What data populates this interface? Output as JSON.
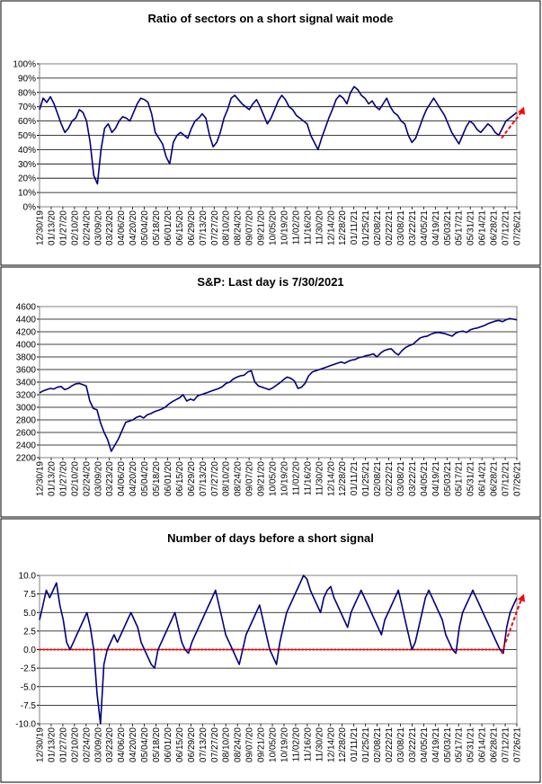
{
  "chart_data": [
    {
      "type": "line",
      "title": "Ratio of sectors on a short signal wait mode",
      "xlabel": "",
      "ylabel": "",
      "ylim": [
        0,
        100
      ],
      "ytick_labels": [
        "0%",
        "10%",
        "20%",
        "30%",
        "40%",
        "50%",
        "60%",
        "70%",
        "80%",
        "90%",
        "100%"
      ],
      "x_tick_labels": [
        "12/30/19",
        "01/13/20",
        "01/27/20",
        "02/10/20",
        "02/24/20",
        "03/09/20",
        "03/23/20",
        "04/06/20",
        "04/20/20",
        "05/04/20",
        "05/18/20",
        "06/01/20",
        "06/15/20",
        "06/29/20",
        "07/13/20",
        "07/27/20",
        "08/10/20",
        "08/24/20",
        "09/07/20",
        "09/21/20",
        "10/05/20",
        "10/19/20",
        "11/02/20",
        "11/16/20",
        "11/30/20",
        "12/14/20",
        "12/28/20",
        "01/11/21",
        "01/25/21",
        "02/08/21",
        "02/22/21",
        "03/08/21",
        "03/22/21",
        "04/05/21",
        "04/19/21",
        "05/03/21",
        "05/17/21",
        "05/31/21",
        "06/14/21",
        "06/28/21",
        "07/12/21",
        "07/26/21"
      ],
      "grid": true,
      "line_color": "#000080",
      "annotation": {
        "type": "arrow",
        "color": "#ff0000",
        "style": "dashed"
      },
      "series": [
        {
          "name": "",
          "values": [
            68,
            76,
            73,
            77,
            72,
            65,
            58,
            52,
            55,
            60,
            62,
            68,
            66,
            60,
            45,
            22,
            16,
            40,
            55,
            58,
            52,
            55,
            60,
            63,
            62,
            60,
            66,
            72,
            76,
            75,
            73,
            65,
            52,
            48,
            44,
            35,
            30,
            45,
            50,
            52,
            50,
            48,
            55,
            60,
            62,
            65,
            62,
            50,
            42,
            45,
            52,
            62,
            68,
            76,
            78,
            75,
            72,
            70,
            68,
            72,
            75,
            70,
            64,
            58,
            62,
            68,
            74,
            78,
            75,
            70,
            68,
            64,
            62,
            60,
            58,
            50,
            45,
            40,
            48,
            55,
            62,
            68,
            75,
            78,
            76,
            72,
            80,
            84,
            82,
            78,
            76,
            72,
            74,
            70,
            68,
            72,
            76,
            70,
            66,
            64,
            60,
            58,
            50,
            45,
            48,
            55,
            62,
            68,
            72,
            76,
            72,
            68,
            64,
            58,
            52,
            48,
            44,
            50,
            56,
            60,
            58,
            54,
            52,
            55,
            58,
            56,
            52,
            50,
            55,
            60,
            62,
            64,
            66
          ]
        }
      ]
    },
    {
      "type": "line",
      "title": "S&P: Last day is 7/30/2021",
      "xlabel": "",
      "ylabel": "",
      "ylim": [
        2200,
        4600
      ],
      "ytick_labels": [
        "2200",
        "2400",
        "2600",
        "2800",
        "3000",
        "3200",
        "3400",
        "3600",
        "3800",
        "4000",
        "4200",
        "4400",
        "4600"
      ],
      "x_tick_labels": [
        "12/30/19",
        "01/13/20",
        "01/27/20",
        "02/10/20",
        "02/24/20",
        "03/09/20",
        "03/23/20",
        "04/06/20",
        "04/20/20",
        "05/04/20",
        "05/18/20",
        "06/01/20",
        "06/15/20",
        "06/29/20",
        "07/13/20",
        "07/27/20",
        "08/10/20",
        "08/24/20",
        "09/07/20",
        "09/21/20",
        "10/05/20",
        "10/19/20",
        "11/02/20",
        "11/16/20",
        "11/30/20",
        "12/14/20",
        "12/28/20",
        "01/11/21",
        "01/25/21",
        "02/08/21",
        "02/22/21",
        "03/08/21",
        "03/22/21",
        "04/05/21",
        "04/19/21",
        "05/03/21",
        "05/17/21",
        "05/31/21",
        "06/14/21",
        "06/28/21",
        "07/12/21",
        "07/26/21"
      ],
      "grid": true,
      "line_color": "#000080",
      "series": [
        {
          "name": "",
          "values": [
            3230,
            3260,
            3280,
            3300,
            3290,
            3320,
            3330,
            3280,
            3300,
            3340,
            3370,
            3380,
            3360,
            3340,
            3100,
            2980,
            2960,
            2750,
            2600,
            2480,
            2300,
            2400,
            2500,
            2630,
            2760,
            2780,
            2800,
            2840,
            2860,
            2830,
            2880,
            2900,
            2930,
            2950,
            2970,
            3000,
            3050,
            3090,
            3120,
            3150,
            3200,
            3100,
            3130,
            3110,
            3180,
            3200,
            3220,
            3240,
            3260,
            3280,
            3300,
            3330,
            3380,
            3400,
            3450,
            3480,
            3500,
            3510,
            3560,
            3580,
            3400,
            3340,
            3320,
            3300,
            3280,
            3310,
            3350,
            3390,
            3440,
            3480,
            3460,
            3420,
            3300,
            3320,
            3380,
            3500,
            3560,
            3580,
            3600,
            3620,
            3640,
            3660,
            3680,
            3700,
            3720,
            3700,
            3730,
            3750,
            3760,
            3790,
            3800,
            3820,
            3830,
            3850,
            3800,
            3860,
            3900,
            3920,
            3930,
            3870,
            3830,
            3900,
            3950,
            3980,
            4000,
            4050,
            4100,
            4120,
            4130,
            4160,
            4180,
            4190,
            4180,
            4170,
            4150,
            4130,
            4180,
            4200,
            4210,
            4190,
            4230,
            4250,
            4260,
            4280,
            4300,
            4330,
            4350,
            4370,
            4380,
            4360,
            4390,
            4410,
            4400,
            4390
          ]
        }
      ]
    },
    {
      "type": "line",
      "title": "Number of days before a short signal",
      "xlabel": "",
      "ylabel": "",
      "ylim": [
        -10,
        10
      ],
      "ytick_labels": [
        "-10.0",
        "-7.5",
        "-5.0",
        "-2.5",
        "0.0",
        "2.5",
        "5.0",
        "7.5",
        "10.0"
      ],
      "x_tick_labels": [
        "12/30/19",
        "01/13/20",
        "01/27/20",
        "02/10/20",
        "02/24/20",
        "03/09/20",
        "03/23/20",
        "04/06/20",
        "04/20/20",
        "05/04/20",
        "05/18/20",
        "06/01/20",
        "06/15/20",
        "06/29/20",
        "07/13/20",
        "07/27/20",
        "08/10/20",
        "08/24/20",
        "09/07/20",
        "09/21/20",
        "10/05/20",
        "10/19/20",
        "11/02/20",
        "11/16/20",
        "11/30/20",
        "12/14/20",
        "12/28/20",
        "01/11/21",
        "01/25/21",
        "02/08/21",
        "02/22/21",
        "03/08/21",
        "03/22/21",
        "04/05/21",
        "04/19/21",
        "05/03/21",
        "05/17/21",
        "05/31/21",
        "06/14/21",
        "06/28/21",
        "07/12/21",
        "07/26/21"
      ],
      "grid": true,
      "line_color": "#000080",
      "reference_line": {
        "y": 0,
        "color": "#ff0000",
        "style": "dotted"
      },
      "annotation": {
        "type": "arrow",
        "color": "#ff0000",
        "style": "dashed"
      },
      "series": [
        {
          "name": "",
          "values": [
            4,
            6,
            8,
            7,
            8,
            9,
            6,
            4,
            1,
            0,
            1,
            2,
            3,
            4,
            5,
            3,
            0,
            -6,
            -10,
            -2,
            0,
            1,
            2,
            1,
            2,
            3,
            4,
            5,
            4,
            3,
            1,
            0,
            -1,
            -2,
            -2.5,
            0,
            1,
            2,
            3,
            4,
            5,
            3,
            1,
            0,
            -0.5,
            1,
            2,
            3,
            4,
            5,
            6,
            7,
            8,
            6,
            4,
            2,
            1,
            0,
            -1,
            -2,
            0,
            2,
            3,
            4,
            5,
            6,
            4,
            2,
            0,
            -1,
            -2,
            1,
            3,
            5,
            6,
            7,
            8,
            9,
            10,
            9.5,
            8,
            7,
            6,
            5,
            7,
            8,
            8.5,
            7,
            6,
            5,
            4,
            3,
            5,
            6,
            7,
            8,
            7,
            6,
            5,
            4,
            3,
            2,
            4,
            5,
            6,
            7,
            8,
            6,
            4,
            2,
            0,
            1,
            3,
            5,
            7,
            8,
            7,
            6,
            5,
            4,
            2,
            1,
            0,
            -0.5,
            3,
            5,
            6,
            7,
            8,
            7,
            6,
            5,
            4,
            3,
            2,
            1,
            0,
            -0.5,
            3,
            5,
            6,
            7
          ]
        }
      ]
    }
  ]
}
